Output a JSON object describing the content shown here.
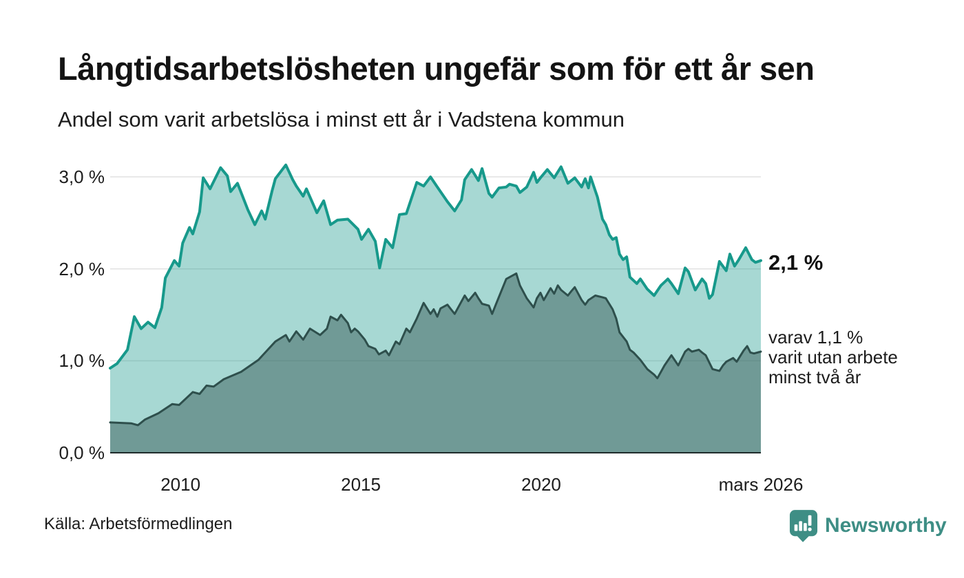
{
  "title": "Långtidsarbetslösheten ungefär som för ett år sen",
  "subtitle": "Andel som varit arbetslösa i minst ett år i Vadstena kommun",
  "source": "Källa: Arbetsförmedlingen",
  "branding": {
    "name": "Newsworthy",
    "color": "#3e8e85",
    "icon": "newsworthy-bubble-bar-chart-icon"
  },
  "annotations": {
    "latest_total": "2,1 %",
    "latest_two_years": "varav 1,1 %\nvarit utan arbete\nminst två år"
  },
  "chart_data": {
    "type": "area",
    "title": "Långtidsarbetslösheten ungefär som för ett år sen",
    "subtitle": "Andel som varit arbetslösa i minst ett år i Vadstena kommun",
    "xlabel": "",
    "ylabel": "",
    "xlim": [
      2008.05,
      2026.09
    ],
    "ylim": [
      0,
      3.165
    ],
    "grid": true,
    "grid_color": "#e2e2e2",
    "baseline_color": "#1f2b2b",
    "legend_position": "right-annotations",
    "x_ticks": [
      {
        "label": "2010",
        "value": 2010
      },
      {
        "label": "2015",
        "value": 2015
      },
      {
        "label": "2020",
        "value": 2020
      },
      {
        "label": "mars 2026",
        "value": 2026.09
      }
    ],
    "y_ticks": [
      {
        "label": "0,0 %",
        "value": 0
      },
      {
        "label": "1,0 %",
        "value": 1
      },
      {
        "label": "2,0 %",
        "value": 2
      },
      {
        "label": "3,0 %",
        "value": 3
      }
    ],
    "series": [
      {
        "name": "Andel arbetslösa minst ett år",
        "end_label": "2,1 %",
        "end_value": 2.1,
        "line_color": "#17998b",
        "fill_color": "rgba(23,153,139,0.38)",
        "line_width": 4,
        "points": [
          [
            2008.05,
            0.92
          ],
          [
            2008.24,
            0.97
          ],
          [
            2008.53,
            1.12
          ],
          [
            2008.72,
            1.48
          ],
          [
            2008.91,
            1.35
          ],
          [
            2009.1,
            1.42
          ],
          [
            2009.29,
            1.36
          ],
          [
            2009.48,
            1.58
          ],
          [
            2009.58,
            1.9
          ],
          [
            2009.83,
            2.09
          ],
          [
            2009.96,
            2.03
          ],
          [
            2010.06,
            2.28
          ],
          [
            2010.25,
            2.45
          ],
          [
            2010.34,
            2.38
          ],
          [
            2010.53,
            2.62
          ],
          [
            2010.63,
            2.99
          ],
          [
            2010.82,
            2.87
          ],
          [
            2011.11,
            3.1
          ],
          [
            2011.3,
            3.01
          ],
          [
            2011.39,
            2.84
          ],
          [
            2011.58,
            2.93
          ],
          [
            2011.87,
            2.64
          ],
          [
            2012.06,
            2.48
          ],
          [
            2012.25,
            2.63
          ],
          [
            2012.35,
            2.54
          ],
          [
            2012.54,
            2.85
          ],
          [
            2012.63,
            2.98
          ],
          [
            2012.92,
            3.13
          ],
          [
            2013.11,
            2.97
          ],
          [
            2013.21,
            2.9
          ],
          [
            2013.4,
            2.79
          ],
          [
            2013.49,
            2.87
          ],
          [
            2013.78,
            2.61
          ],
          [
            2013.97,
            2.74
          ],
          [
            2014.16,
            2.48
          ],
          [
            2014.35,
            2.53
          ],
          [
            2014.64,
            2.54
          ],
          [
            2014.92,
            2.43
          ],
          [
            2015.02,
            2.32
          ],
          [
            2015.21,
            2.43
          ],
          [
            2015.4,
            2.3
          ],
          [
            2015.52,
            2.01
          ],
          [
            2015.69,
            2.32
          ],
          [
            2015.88,
            2.23
          ],
          [
            2016.07,
            2.59
          ],
          [
            2016.26,
            2.6
          ],
          [
            2016.55,
            2.94
          ],
          [
            2016.74,
            2.9
          ],
          [
            2016.93,
            3.0
          ],
          [
            2017.12,
            2.89
          ],
          [
            2017.4,
            2.73
          ],
          [
            2017.6,
            2.63
          ],
          [
            2017.79,
            2.75
          ],
          [
            2017.88,
            2.97
          ],
          [
            2018.07,
            3.08
          ],
          [
            2018.26,
            2.96
          ],
          [
            2018.36,
            3.09
          ],
          [
            2018.55,
            2.82
          ],
          [
            2018.64,
            2.78
          ],
          [
            2018.83,
            2.88
          ],
          [
            2019.03,
            2.89
          ],
          [
            2019.12,
            2.92
          ],
          [
            2019.31,
            2.9
          ],
          [
            2019.41,
            2.83
          ],
          [
            2019.6,
            2.89
          ],
          [
            2019.79,
            3.05
          ],
          [
            2019.88,
            2.94
          ],
          [
            2019.98,
            2.99
          ],
          [
            2020.17,
            3.08
          ],
          [
            2020.36,
            2.99
          ],
          [
            2020.55,
            3.11
          ],
          [
            2020.74,
            2.93
          ],
          [
            2020.93,
            2.99
          ],
          [
            2021.12,
            2.89
          ],
          [
            2021.22,
            2.98
          ],
          [
            2021.31,
            2.88
          ],
          [
            2021.37,
            3.0
          ],
          [
            2021.56,
            2.78
          ],
          [
            2021.7,
            2.54
          ],
          [
            2021.79,
            2.48
          ],
          [
            2021.89,
            2.37
          ],
          [
            2021.98,
            2.32
          ],
          [
            2022.08,
            2.34
          ],
          [
            2022.17,
            2.16
          ],
          [
            2022.27,
            2.1
          ],
          [
            2022.37,
            2.13
          ],
          [
            2022.46,
            1.91
          ],
          [
            2022.65,
            1.84
          ],
          [
            2022.75,
            1.89
          ],
          [
            2022.94,
            1.78
          ],
          [
            2023.13,
            1.71
          ],
          [
            2023.32,
            1.82
          ],
          [
            2023.51,
            1.89
          ],
          [
            2023.61,
            1.84
          ],
          [
            2023.8,
            1.73
          ],
          [
            2023.99,
            2.01
          ],
          [
            2024.08,
            1.97
          ],
          [
            2024.27,
            1.77
          ],
          [
            2024.46,
            1.89
          ],
          [
            2024.56,
            1.84
          ],
          [
            2024.66,
            1.68
          ],
          [
            2024.75,
            1.72
          ],
          [
            2024.94,
            2.08
          ],
          [
            2025.13,
            1.98
          ],
          [
            2025.23,
            2.16
          ],
          [
            2025.36,
            2.03
          ],
          [
            2025.48,
            2.1
          ],
          [
            2025.67,
            2.23
          ],
          [
            2025.84,
            2.1
          ],
          [
            2025.94,
            2.07
          ],
          [
            2026.09,
            2.09
          ]
        ]
      },
      {
        "name": "varav utan arbete minst två år",
        "end_label": "varav 1,1 % varit utan arbete minst två år",
        "end_value": 1.1,
        "line_color": "#2e4f4c",
        "fill_color": "rgba(46,79,76,0.45)",
        "line_width": 3,
        "points": [
          [
            2008.05,
            0.33
          ],
          [
            2008.63,
            0.32
          ],
          [
            2008.82,
            0.3
          ],
          [
            2009.01,
            0.36
          ],
          [
            2009.39,
            0.43
          ],
          [
            2009.77,
            0.53
          ],
          [
            2009.96,
            0.52
          ],
          [
            2010.34,
            0.66
          ],
          [
            2010.53,
            0.64
          ],
          [
            2010.72,
            0.73
          ],
          [
            2010.92,
            0.72
          ],
          [
            2011.2,
            0.8
          ],
          [
            2011.68,
            0.88
          ],
          [
            2012.16,
            1.01
          ],
          [
            2012.63,
            1.21
          ],
          [
            2012.92,
            1.28
          ],
          [
            2013.02,
            1.21
          ],
          [
            2013.21,
            1.32
          ],
          [
            2013.4,
            1.23
          ],
          [
            2013.59,
            1.35
          ],
          [
            2013.87,
            1.28
          ],
          [
            2014.06,
            1.35
          ],
          [
            2014.16,
            1.48
          ],
          [
            2014.35,
            1.44
          ],
          [
            2014.45,
            1.5
          ],
          [
            2014.64,
            1.41
          ],
          [
            2014.73,
            1.31
          ],
          [
            2014.83,
            1.35
          ],
          [
            2014.92,
            1.32
          ],
          [
            2015.11,
            1.23
          ],
          [
            2015.21,
            1.16
          ],
          [
            2015.4,
            1.13
          ],
          [
            2015.5,
            1.07
          ],
          [
            2015.69,
            1.11
          ],
          [
            2015.78,
            1.06
          ],
          [
            2015.97,
            1.21
          ],
          [
            2016.07,
            1.18
          ],
          [
            2016.26,
            1.35
          ],
          [
            2016.36,
            1.31
          ],
          [
            2016.55,
            1.46
          ],
          [
            2016.74,
            1.63
          ],
          [
            2016.93,
            1.51
          ],
          [
            2017.02,
            1.56
          ],
          [
            2017.12,
            1.48
          ],
          [
            2017.21,
            1.57
          ],
          [
            2017.4,
            1.61
          ],
          [
            2017.5,
            1.56
          ],
          [
            2017.6,
            1.51
          ],
          [
            2017.88,
            1.71
          ],
          [
            2017.98,
            1.65
          ],
          [
            2018.17,
            1.74
          ],
          [
            2018.26,
            1.68
          ],
          [
            2018.36,
            1.62
          ],
          [
            2018.55,
            1.6
          ],
          [
            2018.64,
            1.51
          ],
          [
            2018.74,
            1.61
          ],
          [
            2019.03,
            1.89
          ],
          [
            2019.31,
            1.95
          ],
          [
            2019.41,
            1.82
          ],
          [
            2019.6,
            1.68
          ],
          [
            2019.79,
            1.58
          ],
          [
            2019.88,
            1.68
          ],
          [
            2019.98,
            1.74
          ],
          [
            2020.07,
            1.66
          ],
          [
            2020.26,
            1.79
          ],
          [
            2020.36,
            1.73
          ],
          [
            2020.46,
            1.82
          ],
          [
            2020.55,
            1.77
          ],
          [
            2020.74,
            1.71
          ],
          [
            2020.84,
            1.76
          ],
          [
            2020.93,
            1.8
          ],
          [
            2021.12,
            1.66
          ],
          [
            2021.22,
            1.61
          ],
          [
            2021.31,
            1.66
          ],
          [
            2021.5,
            1.71
          ],
          [
            2021.7,
            1.69
          ],
          [
            2021.79,
            1.68
          ],
          [
            2021.98,
            1.56
          ],
          [
            2022.08,
            1.46
          ],
          [
            2022.17,
            1.31
          ],
          [
            2022.37,
            1.21
          ],
          [
            2022.46,
            1.12
          ],
          [
            2022.56,
            1.09
          ],
          [
            2022.75,
            1.01
          ],
          [
            2022.94,
            0.91
          ],
          [
            2023.13,
            0.85
          ],
          [
            2023.22,
            0.81
          ],
          [
            2023.42,
            0.95
          ],
          [
            2023.61,
            1.06
          ],
          [
            2023.8,
            0.95
          ],
          [
            2023.99,
            1.1
          ],
          [
            2024.08,
            1.13
          ],
          [
            2024.18,
            1.1
          ],
          [
            2024.37,
            1.12
          ],
          [
            2024.46,
            1.09
          ],
          [
            2024.56,
            1.06
          ],
          [
            2024.75,
            0.91
          ],
          [
            2024.94,
            0.89
          ],
          [
            2025.04,
            0.95
          ],
          [
            2025.13,
            0.99
          ],
          [
            2025.32,
            1.03
          ],
          [
            2025.42,
            0.99
          ],
          [
            2025.61,
            1.11
          ],
          [
            2025.71,
            1.16
          ],
          [
            2025.8,
            1.09
          ],
          [
            2025.9,
            1.08
          ],
          [
            2026.09,
            1.1
          ]
        ]
      }
    ]
  }
}
